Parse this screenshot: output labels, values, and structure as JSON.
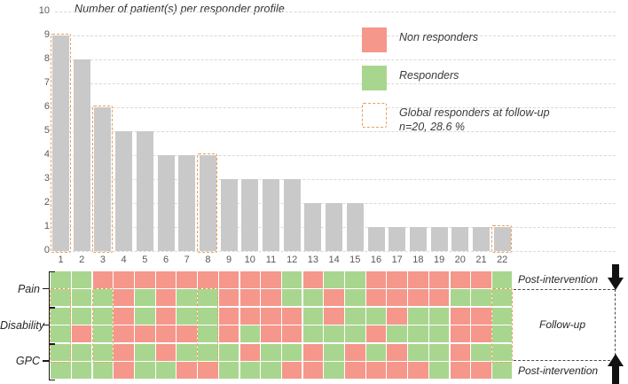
{
  "palette": {
    "non_responder": "#F5978B",
    "responder": "#A9D68F",
    "bar_fill": "#C9C9C9",
    "highlight_dash": "#E8A05E",
    "grid_line": "#D9D9D9",
    "tick_text": "#595959"
  },
  "chart_data": {
    "type": "bar",
    "title": "Number of patient(s) per responder profile",
    "categories": [
      "1",
      "2",
      "3",
      "4",
      "5",
      "6",
      "7",
      "8",
      "9",
      "10",
      "11",
      "12",
      "13",
      "14",
      "15",
      "16",
      "17",
      "18",
      "19",
      "20",
      "21",
      "22"
    ],
    "values": [
      9,
      8,
      6,
      5,
      5,
      4,
      4,
      4,
      3,
      3,
      3,
      3,
      2,
      2,
      2,
      1,
      1,
      1,
      1,
      1,
      1,
      1
    ],
    "xlabel": "",
    "ylabel": "",
    "ylim": [
      0,
      10
    ],
    "y_ticks": [
      0,
      1,
      2,
      3,
      4,
      5,
      6,
      7,
      8,
      9,
      10
    ],
    "grid": "dashed-horizontal",
    "highlighted_profiles": [
      1,
      3,
      8,
      22
    ],
    "legend_position": "top-right"
  },
  "legend": {
    "items": [
      {
        "label": "Non responders",
        "swatch": "non_responder"
      },
      {
        "label": "Responders",
        "swatch": "responder"
      },
      {
        "label": "Global responders at follow-up",
        "label_line2": "n=20, 28.6 %",
        "swatch": "dashed-outline"
      }
    ]
  },
  "heatmap": {
    "columns": [
      "1",
      "2",
      "3",
      "4",
      "5",
      "6",
      "7",
      "8",
      "9",
      "10",
      "11",
      "12",
      "13",
      "14",
      "15",
      "16",
      "17",
      "18",
      "19",
      "20",
      "21",
      "22"
    ],
    "legend_key": {
      "G": "responder",
      "R": "non_responder"
    },
    "rows": [
      {
        "measure": "Pain",
        "time": "Post-intervention",
        "cells": "GGRRRRRRRRRGRGGRRRRRRG"
      },
      {
        "measure": "Pain",
        "time": "Follow-up",
        "cells": "GGGRGRGGRRRGGRGRRRRGGG"
      },
      {
        "measure": "Disability",
        "time": "Follow-up",
        "cells": "GGGRGRGGRRRRGRGGRGGRRG"
      },
      {
        "measure": "Disability",
        "time": "Follow-up",
        "cells": "GRGRRRRGRGRRGGGRGGGRRG"
      },
      {
        "measure": "GPC",
        "time": "Follow-up",
        "cells": "GGGRGRGGGRGGRGRGRGGRGG"
      },
      {
        "measure": "GPC",
        "time": "Post-intervention",
        "cells": "GGGRGGRRGGGRRGRRRRGRRG"
      }
    ],
    "measure_labels": [
      "Pain",
      "Disability",
      "GPC"
    ]
  },
  "timeline": {
    "top_label": "Post-intervention",
    "middle_label": "Follow-up",
    "bottom_label": "Post-intervention"
  }
}
